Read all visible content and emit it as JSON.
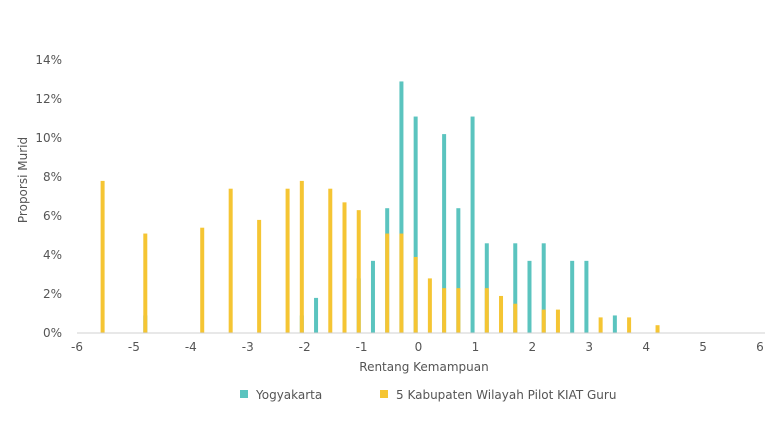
{
  "chart_data": {
    "type": "bar",
    "title": "",
    "xlabel": "Rentang Kemampuan",
    "ylabel": "Proporsi Murid",
    "xlim": [
      -6,
      6
    ],
    "ylim": [
      0,
      14
    ],
    "x_ticks": [
      "-6",
      "-5",
      "-4",
      "-3",
      "-2",
      "-1",
      "0",
      "1",
      "2",
      "3",
      "4",
      "5",
      "6"
    ],
    "y_ticks": [
      "0%",
      "2%",
      "4%",
      "6%",
      "8%",
      "10%",
      "12%",
      "14%"
    ],
    "grid": false,
    "legend_position": "bottom",
    "series": [
      {
        "name": "Yogyakarta",
        "color": "#5bc4bf",
        "points": [
          {
            "x": -4.8,
            "y": 0.9
          },
          {
            "x": -2.05,
            "y": 0.9
          },
          {
            "x": -1.8,
            "y": 1.8
          },
          {
            "x": -1.3,
            "y": 4.6
          },
          {
            "x": -1.05,
            "y": 2.8
          },
          {
            "x": -0.8,
            "y": 3.7
          },
          {
            "x": -0.55,
            "y": 6.4
          },
          {
            "x": -0.3,
            "y": 12.9
          },
          {
            "x": -0.05,
            "y": 11.1
          },
          {
            "x": 0.45,
            "y": 10.2
          },
          {
            "x": 0.7,
            "y": 6.4
          },
          {
            "x": 0.95,
            "y": 11.1
          },
          {
            "x": 1.2,
            "y": 4.6
          },
          {
            "x": 1.7,
            "y": 4.6
          },
          {
            "x": 1.95,
            "y": 3.7
          },
          {
            "x": 2.2,
            "y": 4.6
          },
          {
            "x": 2.7,
            "y": 3.7
          },
          {
            "x": 2.95,
            "y": 3.7
          },
          {
            "x": 3.45,
            "y": 0.9
          }
        ]
      },
      {
        "name": "5 Kabupaten Wilayah Pilot KIAT Guru",
        "color": "#f5c533",
        "points": [
          {
            "x": -5.55,
            "y": 7.8
          },
          {
            "x": -4.8,
            "y": 5.1
          },
          {
            "x": -3.8,
            "y": 5.4
          },
          {
            "x": -3.3,
            "y": 7.4
          },
          {
            "x": -2.8,
            "y": 5.8
          },
          {
            "x": -2.3,
            "y": 7.4
          },
          {
            "x": -2.05,
            "y": 7.8
          },
          {
            "x": -1.55,
            "y": 7.4
          },
          {
            "x": -1.3,
            "y": 6.7
          },
          {
            "x": -1.05,
            "y": 6.3
          },
          {
            "x": -0.55,
            "y": 5.1
          },
          {
            "x": -0.3,
            "y": 5.1
          },
          {
            "x": -0.05,
            "y": 3.9
          },
          {
            "x": 0.2,
            "y": 2.8
          },
          {
            "x": 0.45,
            "y": 2.3
          },
          {
            "x": 0.7,
            "y": 2.3
          },
          {
            "x": 1.2,
            "y": 2.3
          },
          {
            "x": 1.45,
            "y": 1.9
          },
          {
            "x": 1.7,
            "y": 1.5
          },
          {
            "x": 2.2,
            "y": 1.2
          },
          {
            "x": 2.45,
            "y": 1.2
          },
          {
            "x": 3.2,
            "y": 0.8
          },
          {
            "x": 3.7,
            "y": 0.8
          },
          {
            "x": 4.2,
            "y": 0.4
          }
        ]
      }
    ]
  }
}
